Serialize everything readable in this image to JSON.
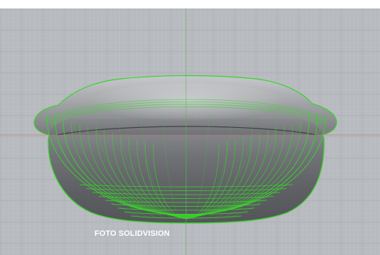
{
  "viewport": {
    "name": "3d-viewport",
    "background": "#b7babe",
    "grid_minor_color": "#c4c7cb",
    "grid_major_color": "#a8abb0",
    "axis_x_color": "#c86b6b",
    "axis_y_color": "#5fb35f"
  },
  "model": {
    "name": "bowl-scan-model",
    "wire_color": "#39d42a",
    "mesh_color": "#5a5c60"
  },
  "caption": {
    "text": "FOTO SOLIDVISION"
  }
}
